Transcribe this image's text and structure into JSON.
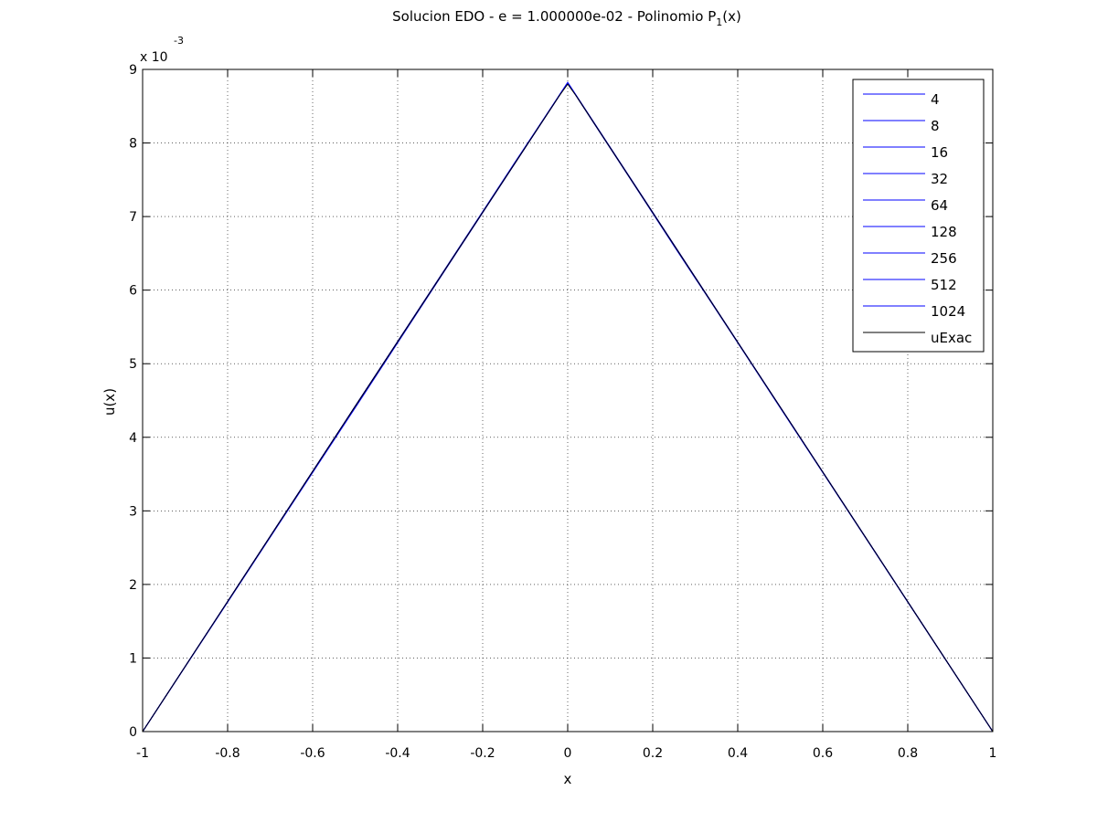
{
  "chart_data": {
    "type": "line",
    "title": {
      "main": "Solucion EDO - e = 1.000000e-02 - Polinomio P",
      "subscript": "1",
      "tail": "(x)"
    },
    "xlabel": "x",
    "ylabel": "u(x)",
    "y_multiplier": {
      "base": "x 10",
      "exponent": "-3"
    },
    "xlim": [
      -1,
      1
    ],
    "ylim": [
      0,
      9
    ],
    "x_ticks": [
      -1,
      -0.8,
      -0.6,
      -0.4,
      -0.2,
      0,
      0.2,
      0.4,
      0.6,
      0.8,
      1
    ],
    "x_tick_labels": [
      "-1",
      "-0.8",
      "-0.6",
      "-0.4",
      "-0.2",
      "0",
      "0.2",
      "0.4",
      "0.6",
      "0.8",
      "1"
    ],
    "y_ticks": [
      0,
      1,
      2,
      3,
      4,
      5,
      6,
      7,
      8,
      9
    ],
    "y_tick_labels": [
      "0",
      "1",
      "2",
      "3",
      "4",
      "5",
      "6",
      "7",
      "8",
      "9"
    ],
    "grid": true,
    "legend_position": "top-right",
    "series": [
      {
        "name": "4",
        "color": "#0000ff",
        "x": [
          -1,
          -0.5,
          0,
          0.5,
          1
        ],
        "y": [
          0,
          4.4,
          8.82,
          4.4,
          0
        ]
      },
      {
        "name": "8",
        "color": "#0000ff",
        "x": [
          -1,
          -0.75,
          -0.5,
          -0.25,
          0,
          0.25,
          0.5,
          0.75,
          1
        ],
        "y": [
          0,
          2.2,
          4.42,
          6.62,
          8.82,
          6.6,
          4.41,
          2.2,
          0
        ]
      },
      {
        "name": "16",
        "color": "#0000ff",
        "x": [
          -1,
          -0.5,
          -0.125,
          0,
          0.125,
          0.5,
          1
        ],
        "y": [
          0,
          4.42,
          7.73,
          8.82,
          7.72,
          4.41,
          0
        ]
      },
      {
        "name": "32",
        "color": "#0000ff",
        "x": [
          -1,
          -0.5,
          -0.0625,
          0,
          0.0625,
          0.5,
          1
        ],
        "y": [
          0,
          4.42,
          8.27,
          8.82,
          8.26,
          4.41,
          0
        ]
      },
      {
        "name": "64",
        "color": "#0000ff",
        "x": [
          -1,
          -0.5,
          -0.03125,
          0,
          0.03125,
          0.5,
          1
        ],
        "y": [
          0,
          4.42,
          8.54,
          8.82,
          8.54,
          4.41,
          0
        ]
      },
      {
        "name": "128",
        "color": "#0000ff",
        "x": [
          -1,
          -0.5,
          -0.015625,
          0,
          0.015625,
          0.5,
          1
        ],
        "y": [
          0,
          4.42,
          8.68,
          8.82,
          8.68,
          4.41,
          0
        ]
      },
      {
        "name": "256",
        "color": "#0000ff",
        "x": [
          -1,
          -0.5,
          -0.0078,
          0,
          0.0078,
          0.5,
          1
        ],
        "y": [
          0,
          4.42,
          8.75,
          8.82,
          8.75,
          4.41,
          0
        ]
      },
      {
        "name": "512",
        "color": "#0000ff",
        "x": [
          -1,
          -0.5,
          -0.0039,
          0,
          0.0039,
          0.5,
          1
        ],
        "y": [
          0,
          4.42,
          8.79,
          8.82,
          8.79,
          4.41,
          0
        ]
      },
      {
        "name": "1024",
        "color": "#0000ff",
        "x": [
          -1,
          -0.5,
          -0.002,
          0,
          0.002,
          0.5,
          1
        ],
        "y": [
          0,
          4.42,
          8.8,
          8.82,
          8.8,
          4.41,
          0
        ]
      },
      {
        "name": "uExac",
        "color": "#000000",
        "x": [
          -1,
          -0.5,
          -0.02,
          0,
          0.02,
          0.5,
          1
        ],
        "y": [
          0,
          4.42,
          8.64,
          8.8,
          8.64,
          4.41,
          0
        ]
      }
    ]
  }
}
